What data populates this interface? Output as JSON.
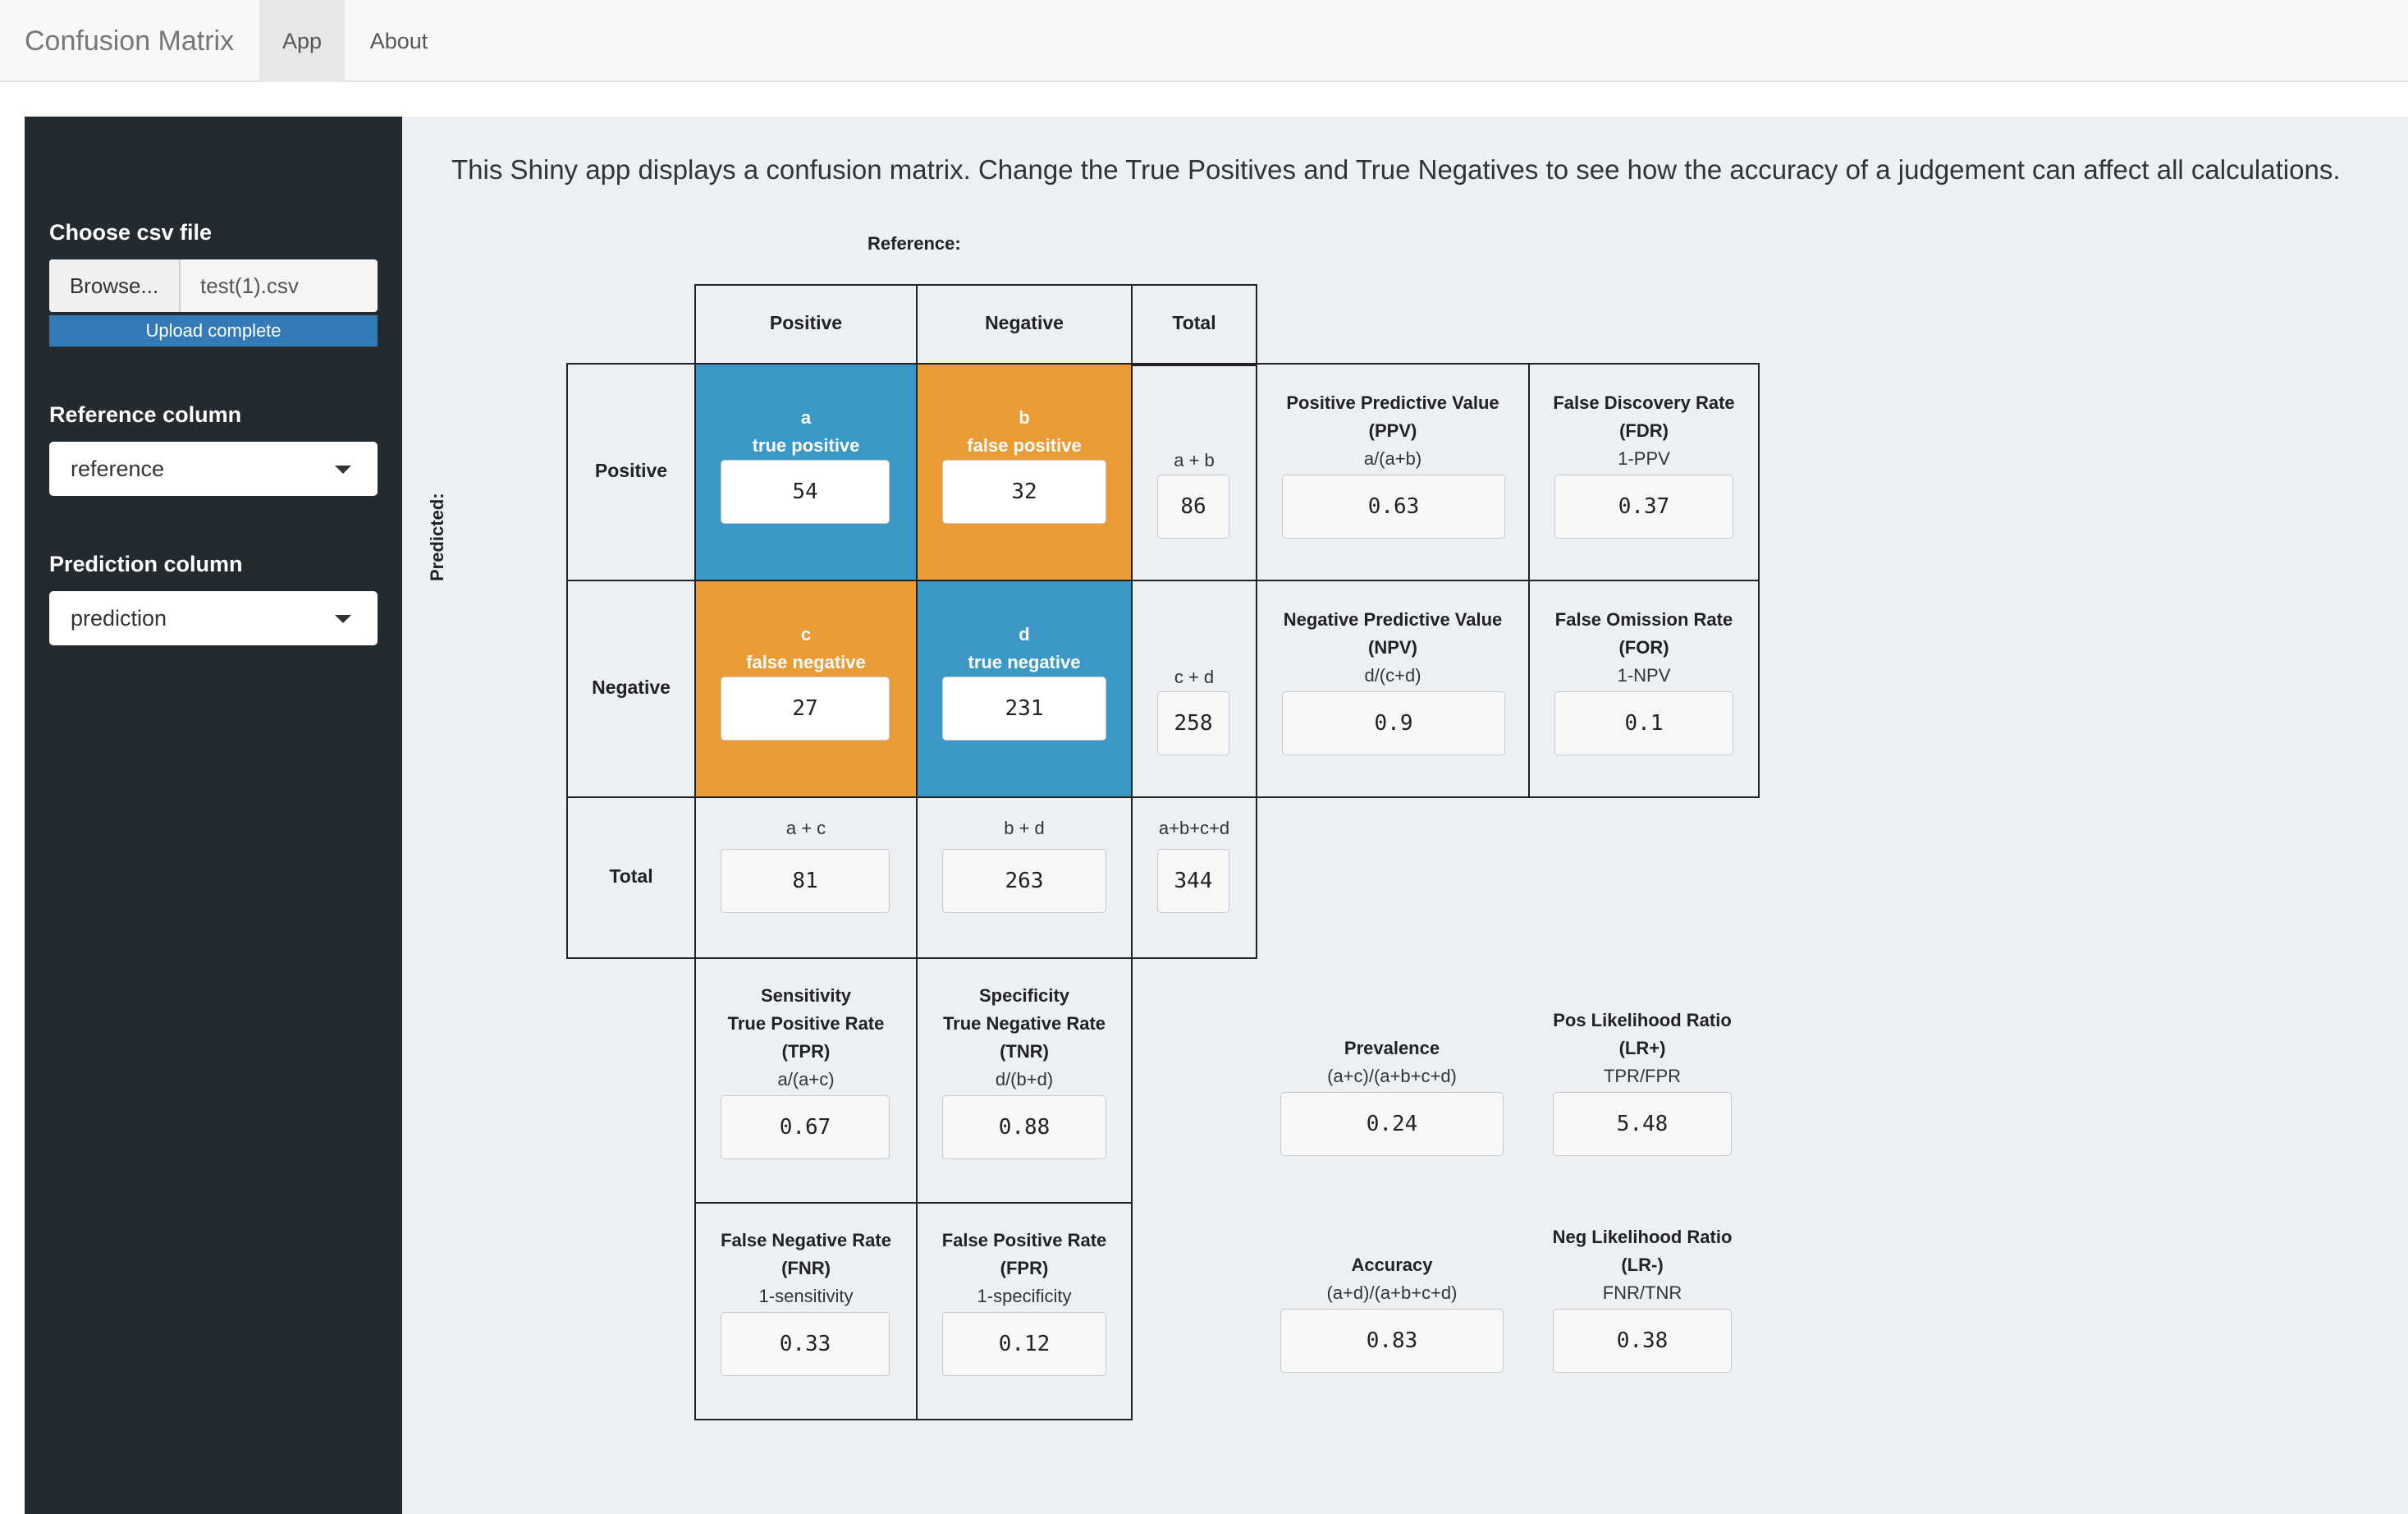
{
  "navbar": {
    "brand": "Confusion Matrix",
    "tabs": [
      {
        "label": "App"
      },
      {
        "label": "About"
      }
    ]
  },
  "sidebar": {
    "file_label": "Choose csv file",
    "browse_label": "Browse...",
    "file_name": "test(1).csv",
    "upload_status": "Upload complete",
    "reference_label": "Reference column",
    "reference_value": "reference",
    "prediction_label": "Prediction column",
    "prediction_value": "prediction"
  },
  "main": {
    "intro": "This Shiny app displays a confusion matrix. Change the True Positives and True Negatives to see how the accuracy of a judgement can affect all calculations.",
    "reference_label": "Reference:",
    "predicted_label": "Predicted:",
    "col_headers": [
      "Positive",
      "Negative",
      "Total"
    ],
    "row_headers": [
      "Positive",
      "Negative",
      "Total"
    ]
  },
  "matrix": {
    "a": {
      "letter": "a",
      "name": "true positive",
      "value": "54"
    },
    "b": {
      "letter": "b",
      "name": "false positive",
      "value": "32"
    },
    "c": {
      "letter": "c",
      "name": "false negative",
      "value": "27"
    },
    "d": {
      "letter": "d",
      "name": "true negative",
      "value": "231"
    },
    "ab": {
      "formula": "a + b",
      "value": "86"
    },
    "cd": {
      "formula": "c + d",
      "value": "258"
    },
    "ac": {
      "formula": "a + c",
      "value": "81"
    },
    "bd": {
      "formula": "b + d",
      "value": "263"
    },
    "total": {
      "formula": "a+b+c+d",
      "value": "344"
    }
  },
  "metrics": {
    "ppv": {
      "title1": "Positive Predictive Value",
      "title2": "(PPV)",
      "formula": "a/(a+b)",
      "value": "0.63"
    },
    "fdr": {
      "title1": "False Discovery Rate",
      "title2": "(FDR)",
      "formula": "1-PPV",
      "value": "0.37"
    },
    "npv": {
      "title1": "Negative Predictive Value",
      "title2": "(NPV)",
      "formula": "d/(c+d)",
      "value": "0.9"
    },
    "for": {
      "title1": "False Omission Rate",
      "title2": "(FOR)",
      "formula": "1-NPV",
      "value": "0.1"
    },
    "tpr": {
      "title1": "Sensitivity",
      "title2": "True Positive Rate",
      "title3": "(TPR)",
      "formula": "a/(a+c)",
      "value": "0.67"
    },
    "tnr": {
      "title1": "Specificity",
      "title2": "True Negative Rate",
      "title3": "(TNR)",
      "formula": "d/(b+d)",
      "value": "0.88"
    },
    "fnr": {
      "title1": "False Negative Rate",
      "title2": "(FNR)",
      "formula": "1-sensitivity",
      "value": "0.33"
    },
    "fpr": {
      "title1": "False Positive Rate",
      "title2": "(FPR)",
      "formula": "1-specificity",
      "value": "0.12"
    },
    "prevalence": {
      "title1": "Prevalence",
      "formula": "(a+c)/(a+b+c+d)",
      "value": "0.24"
    },
    "lrpos": {
      "title1": "Pos Likelihood Ratio",
      "title2": "(LR+)",
      "formula": "TPR/FPR",
      "value": "5.48"
    },
    "accuracy": {
      "title1": "Accuracy",
      "formula": "(a+d)/(a+b+c+d)",
      "value": "0.83"
    },
    "lrneg": {
      "title1": "Neg Likelihood Ratio",
      "title2": "(LR-)",
      "formula": "FNR/TNR",
      "value": "0.38"
    }
  }
}
